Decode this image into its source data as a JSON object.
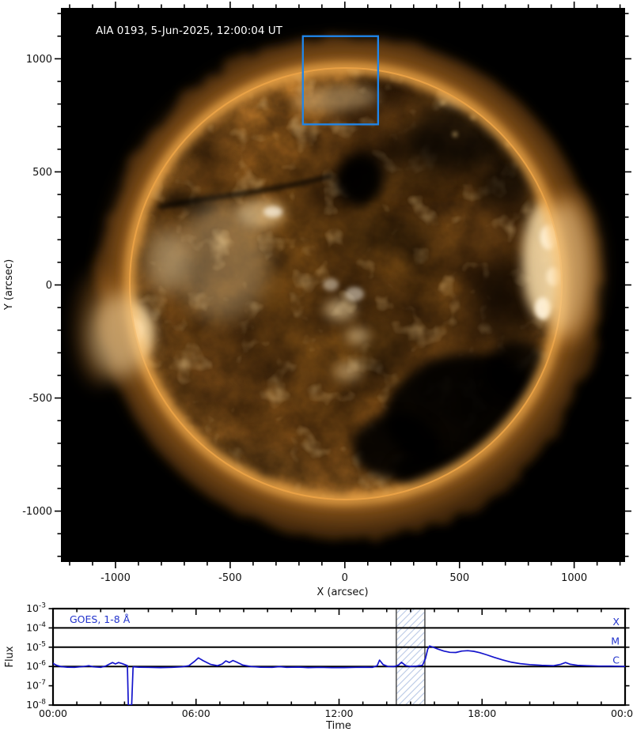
{
  "colors": {
    "page_bg": "#ffffff",
    "image_bg": "#000000",
    "roi_box": "#1f86eb",
    "goes_curve": "#1414cc",
    "goes_text": "#2233cc",
    "class_line": "#000000",
    "hatch_line": "#b9c9e6",
    "band_edge": "#5a5a5a",
    "axis_text": "#111111",
    "title_text": "#ffffff"
  },
  "aia_panel": {
    "title": "AIA 0193, 5-Jun-2025, 12:00:04 UT",
    "xlabel": "X (arcsec)",
    "ylabel": "Y (arcsec)",
    "x_ticks": [
      -1000,
      -500,
      0,
      500,
      1000
    ],
    "y_ticks": [
      1000,
      500,
      0,
      -500,
      -1000
    ],
    "minor_step": 100,
    "x_range": [
      -1238,
      1222
    ],
    "y_range": [
      -1225,
      1225
    ],
    "roi_box": {
      "x_min": -183,
      "x_max": 145,
      "y_min": 710,
      "y_max": 1100
    }
  },
  "goes_panel": {
    "label": "GOES, 1-8 Å",
    "xlabel": "Time",
    "ylabel": "Flux",
    "x_ticks": [
      "00:00",
      "06:00",
      "12:00",
      "18:00",
      "00:00"
    ],
    "x_tick_hours": [
      0,
      6,
      12,
      18,
      24
    ],
    "hour_span": 24,
    "y_tick_exponents": [
      -3,
      -4,
      -5,
      -6,
      -7,
      -8
    ],
    "class_lines": [
      {
        "label": "X",
        "flux_exp": -4
      },
      {
        "label": "M",
        "flux_exp": -5
      },
      {
        "label": "C",
        "flux_exp": -6
      }
    ],
    "hatch_band_hours": [
      14.4,
      15.6
    ]
  },
  "chart_data": [
    {
      "type": "heatmap",
      "title": "AIA 0193, 5-Jun-2025, 12:00:04 UT",
      "xlabel": "X (arcsec)",
      "ylabel": "Y (arcsec)",
      "xlim": [
        -1238,
        1222
      ],
      "ylim": [
        -1225,
        1225
      ],
      "annotations": [
        "Full-disk AIA 193 A solar image, gold color table",
        "Blue ROI box: x -183..145 arcsec, y 710..1100 arcsec (north limb)",
        "Dark coronal holes near disk center-north and south-east quadrant",
        "Bright active regions on east and west limbs"
      ]
    },
    {
      "type": "line",
      "title": "GOES, 1-8 Å",
      "xlabel": "Time",
      "ylabel": "Flux",
      "x_axis_hours": [
        0,
        6,
        12,
        18,
        24
      ],
      "ylog_range_exp": [
        -8,
        -3
      ],
      "grid": false,
      "legend_position": "upper-left-inside",
      "hlines_flux": [
        0.0001,
        1e-05,
        1e-06
      ],
      "hline_labels": [
        "X",
        "M",
        "C"
      ],
      "hatch_band_hours": [
        14.4,
        15.6
      ],
      "series": [
        {
          "name": "GOES 1-8 A flux (W/m^2)",
          "x_hours": [
            0.0,
            0.15,
            0.35,
            0.6,
            0.9,
            1.3,
            1.5,
            1.7,
            2.0,
            2.2,
            2.35,
            2.5,
            2.62,
            2.75,
            2.9,
            3.05,
            3.12,
            3.16,
            3.3,
            3.36,
            3.6,
            4.0,
            4.5,
            5.0,
            5.4,
            5.7,
            5.95,
            6.1,
            6.3,
            6.6,
            6.9,
            7.1,
            7.25,
            7.4,
            7.55,
            7.7,
            7.95,
            8.3,
            8.7,
            9.2,
            9.5,
            9.8,
            10.3,
            10.7,
            11.2,
            11.7,
            12.2,
            12.7,
            13.1,
            13.4,
            13.6,
            13.7,
            13.85,
            14.05,
            14.3,
            14.5,
            14.62,
            14.8,
            15.0,
            15.25,
            15.5,
            15.62,
            15.72,
            15.8,
            15.95,
            16.15,
            16.4,
            16.65,
            16.9,
            17.15,
            17.4,
            17.65,
            17.9,
            18.2,
            18.5,
            18.85,
            19.2,
            19.6,
            20.0,
            20.5,
            21.0,
            21.3,
            21.5,
            21.7,
            22.0,
            22.4,
            22.9,
            23.4,
            24.0
          ],
          "flux": [
            1.45e-06,
            1.15e-06,
            9.8e-07,
            9.2e-07,
            9e-07,
            1e-06,
            1.1e-06,
            9.5e-07,
            9e-07,
            1.05e-06,
            1.3e-06,
            1.6e-06,
            1.35e-06,
            1.6e-06,
            1.4e-06,
            1.2e-06,
            1.1e-06,
            1e-08,
            1e-08,
            9.5e-07,
            9.2e-07,
            9e-07,
            8.8e-07,
            9e-07,
            9.5e-07,
            1.1e-06,
            1.9e-06,
            2.8e-06,
            2e-06,
            1.3e-06,
            1.1e-06,
            1.35e-06,
            1.95e-06,
            1.6e-06,
            2.05e-06,
            1.7e-06,
            1.2e-06,
            1e-06,
            9.2e-07,
            9e-07,
            9.8e-07,
            9e-07,
            9.3e-07,
            8.8e-07,
            9e-07,
            8.7e-07,
            8.8e-07,
            9e-07,
            9.2e-07,
            9e-07,
            1.1e-06,
            2.15e-06,
            1.25e-06,
            1e-06,
            9.8e-07,
            1.2e-06,
            1.65e-06,
            1.1e-06,
            1e-06,
            1.05e-06,
            1.15e-06,
            2.5e-06,
            8e-06,
            1.15e-05,
            1e-05,
            8e-06,
            6.3e-06,
            5.4e-06,
            5.3e-06,
            6.3e-06,
            6.6e-06,
            6.1e-06,
            5.2e-06,
            4e-06,
            3e-06,
            2.2e-06,
            1.7e-06,
            1.4e-06,
            1.25e-06,
            1.15e-06,
            1.1e-06,
            1.3e-06,
            1.6e-06,
            1.3e-06,
            1.15e-06,
            1.1e-06,
            1.05e-06,
            1.05e-06,
            1e-06
          ]
        }
      ]
    }
  ]
}
